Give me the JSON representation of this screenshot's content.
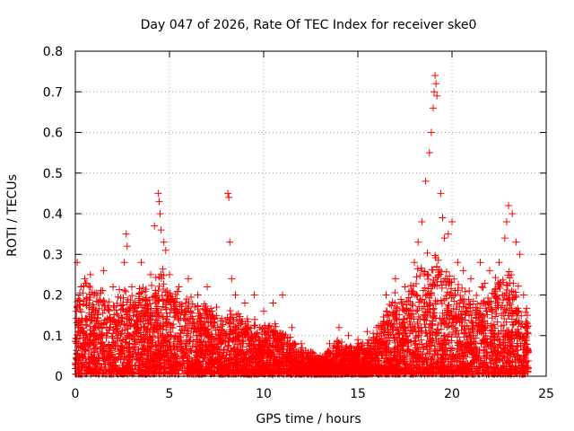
{
  "chart_data": {
    "type": "scatter",
    "title": "Day 047 of 2026, Rate Of TEC Index for receiver ske0",
    "xlabel": "GPS time / hours",
    "ylabel": "ROTI / TECUs",
    "xlim": [
      0,
      25
    ],
    "ylim": [
      0,
      0.8
    ],
    "xticks": [
      0,
      5,
      10,
      15,
      20,
      25
    ],
    "yticks": [
      0,
      0.1,
      0.2,
      0.3,
      0.4,
      0.5,
      0.6,
      0.7,
      0.8
    ],
    "xtick_labels": [
      "0",
      "5",
      "10",
      "15",
      "20",
      "25"
    ],
    "ytick_labels": [
      "0",
      "0.1",
      "0.2",
      "0.3",
      "0.4",
      "0.5",
      "0.6",
      "0.7",
      "0.8"
    ],
    "grid": true,
    "marker": "+",
    "color": "#ff0000",
    "series": [
      {
        "name": "ROTI",
        "points": [
          [
            0.1,
            0.28
          ],
          [
            0.3,
            0.22
          ],
          [
            0.5,
            0.24
          ],
          [
            0.8,
            0.25
          ],
          [
            1.0,
            0.2
          ],
          [
            1.5,
            0.26
          ],
          [
            2.0,
            0.22
          ],
          [
            2.6,
            0.28
          ],
          [
            2.7,
            0.35
          ],
          [
            2.75,
            0.32
          ],
          [
            3.0,
            0.22
          ],
          [
            3.5,
            0.28
          ],
          [
            4.0,
            0.25
          ],
          [
            4.2,
            0.37
          ],
          [
            4.4,
            0.45
          ],
          [
            4.45,
            0.43
          ],
          [
            4.5,
            0.4
          ],
          [
            4.55,
            0.36
          ],
          [
            4.7,
            0.33
          ],
          [
            4.8,
            0.31
          ],
          [
            5.0,
            0.25
          ],
          [
            5.5,
            0.22
          ],
          [
            6.0,
            0.24
          ],
          [
            6.5,
            0.2
          ],
          [
            7.0,
            0.22
          ],
          [
            7.5,
            0.17
          ],
          [
            8.1,
            0.45
          ],
          [
            8.15,
            0.44
          ],
          [
            8.2,
            0.33
          ],
          [
            8.3,
            0.24
          ],
          [
            8.5,
            0.2
          ],
          [
            9.0,
            0.18
          ],
          [
            9.5,
            0.2
          ],
          [
            10.0,
            0.16
          ],
          [
            10.5,
            0.18
          ],
          [
            11.0,
            0.2
          ],
          [
            11.5,
            0.12
          ],
          [
            12.0,
            0.08
          ],
          [
            12.5,
            0.06
          ],
          [
            13.0,
            0.05
          ],
          [
            13.5,
            0.08
          ],
          [
            14.0,
            0.12
          ],
          [
            14.5,
            0.1
          ],
          [
            15.0,
            0.09
          ],
          [
            15.5,
            0.11
          ],
          [
            16.0,
            0.12
          ],
          [
            16.5,
            0.2
          ],
          [
            17.0,
            0.24
          ],
          [
            17.5,
            0.22
          ],
          [
            18.0,
            0.28
          ],
          [
            18.2,
            0.33
          ],
          [
            18.4,
            0.38
          ],
          [
            18.6,
            0.48
          ],
          [
            18.8,
            0.55
          ],
          [
            18.9,
            0.6
          ],
          [
            19.0,
            0.66
          ],
          [
            19.05,
            0.7
          ],
          [
            19.1,
            0.74
          ],
          [
            19.15,
            0.72
          ],
          [
            19.2,
            0.69
          ],
          [
            19.4,
            0.45
          ],
          [
            19.5,
            0.39
          ],
          [
            19.6,
            0.34
          ],
          [
            19.8,
            0.35
          ],
          [
            20.0,
            0.38
          ],
          [
            20.3,
            0.28
          ],
          [
            20.6,
            0.26
          ],
          [
            21.0,
            0.24
          ],
          [
            21.5,
            0.28
          ],
          [
            22.0,
            0.26
          ],
          [
            22.5,
            0.28
          ],
          [
            22.8,
            0.34
          ],
          [
            22.9,
            0.38
          ],
          [
            23.0,
            0.42
          ],
          [
            23.2,
            0.4
          ],
          [
            23.4,
            0.33
          ],
          [
            23.6,
            0.3
          ],
          [
            23.8,
            0.2
          ],
          [
            24.0,
            0.15
          ]
        ],
        "envelope": [
          [
            0,
            0.2
          ],
          [
            0.5,
            0.22
          ],
          [
            1,
            0.18
          ],
          [
            1.5,
            0.2
          ],
          [
            2,
            0.16
          ],
          [
            2.5,
            0.2
          ],
          [
            3,
            0.18
          ],
          [
            3.5,
            0.2
          ],
          [
            4,
            0.2
          ],
          [
            4.5,
            0.24
          ],
          [
            5,
            0.2
          ],
          [
            5.5,
            0.18
          ],
          [
            6,
            0.18
          ],
          [
            6.5,
            0.16
          ],
          [
            7,
            0.17
          ],
          [
            7.5,
            0.13
          ],
          [
            8,
            0.14
          ],
          [
            8.5,
            0.15
          ],
          [
            9,
            0.12
          ],
          [
            9.5,
            0.13
          ],
          [
            10,
            0.12
          ],
          [
            10.5,
            0.12
          ],
          [
            11,
            0.1
          ],
          [
            11.5,
            0.08
          ],
          [
            12,
            0.06
          ],
          [
            12.5,
            0.05
          ],
          [
            13,
            0.04
          ],
          [
            13.5,
            0.06
          ],
          [
            14,
            0.08
          ],
          [
            14.5,
            0.06
          ],
          [
            15,
            0.07
          ],
          [
            15.5,
            0.08
          ],
          [
            16,
            0.1
          ],
          [
            16.5,
            0.15
          ],
          [
            17,
            0.18
          ],
          [
            17.5,
            0.18
          ],
          [
            18,
            0.22
          ],
          [
            18.5,
            0.26
          ],
          [
            19,
            0.28
          ],
          [
            19.5,
            0.24
          ],
          [
            20,
            0.22
          ],
          [
            20.5,
            0.2
          ],
          [
            21,
            0.18
          ],
          [
            21.5,
            0.2
          ],
          [
            22,
            0.2
          ],
          [
            22.5,
            0.22
          ],
          [
            23,
            0.24
          ],
          [
            23.5,
            0.2
          ],
          [
            24,
            0.14
          ]
        ]
      }
    ]
  }
}
